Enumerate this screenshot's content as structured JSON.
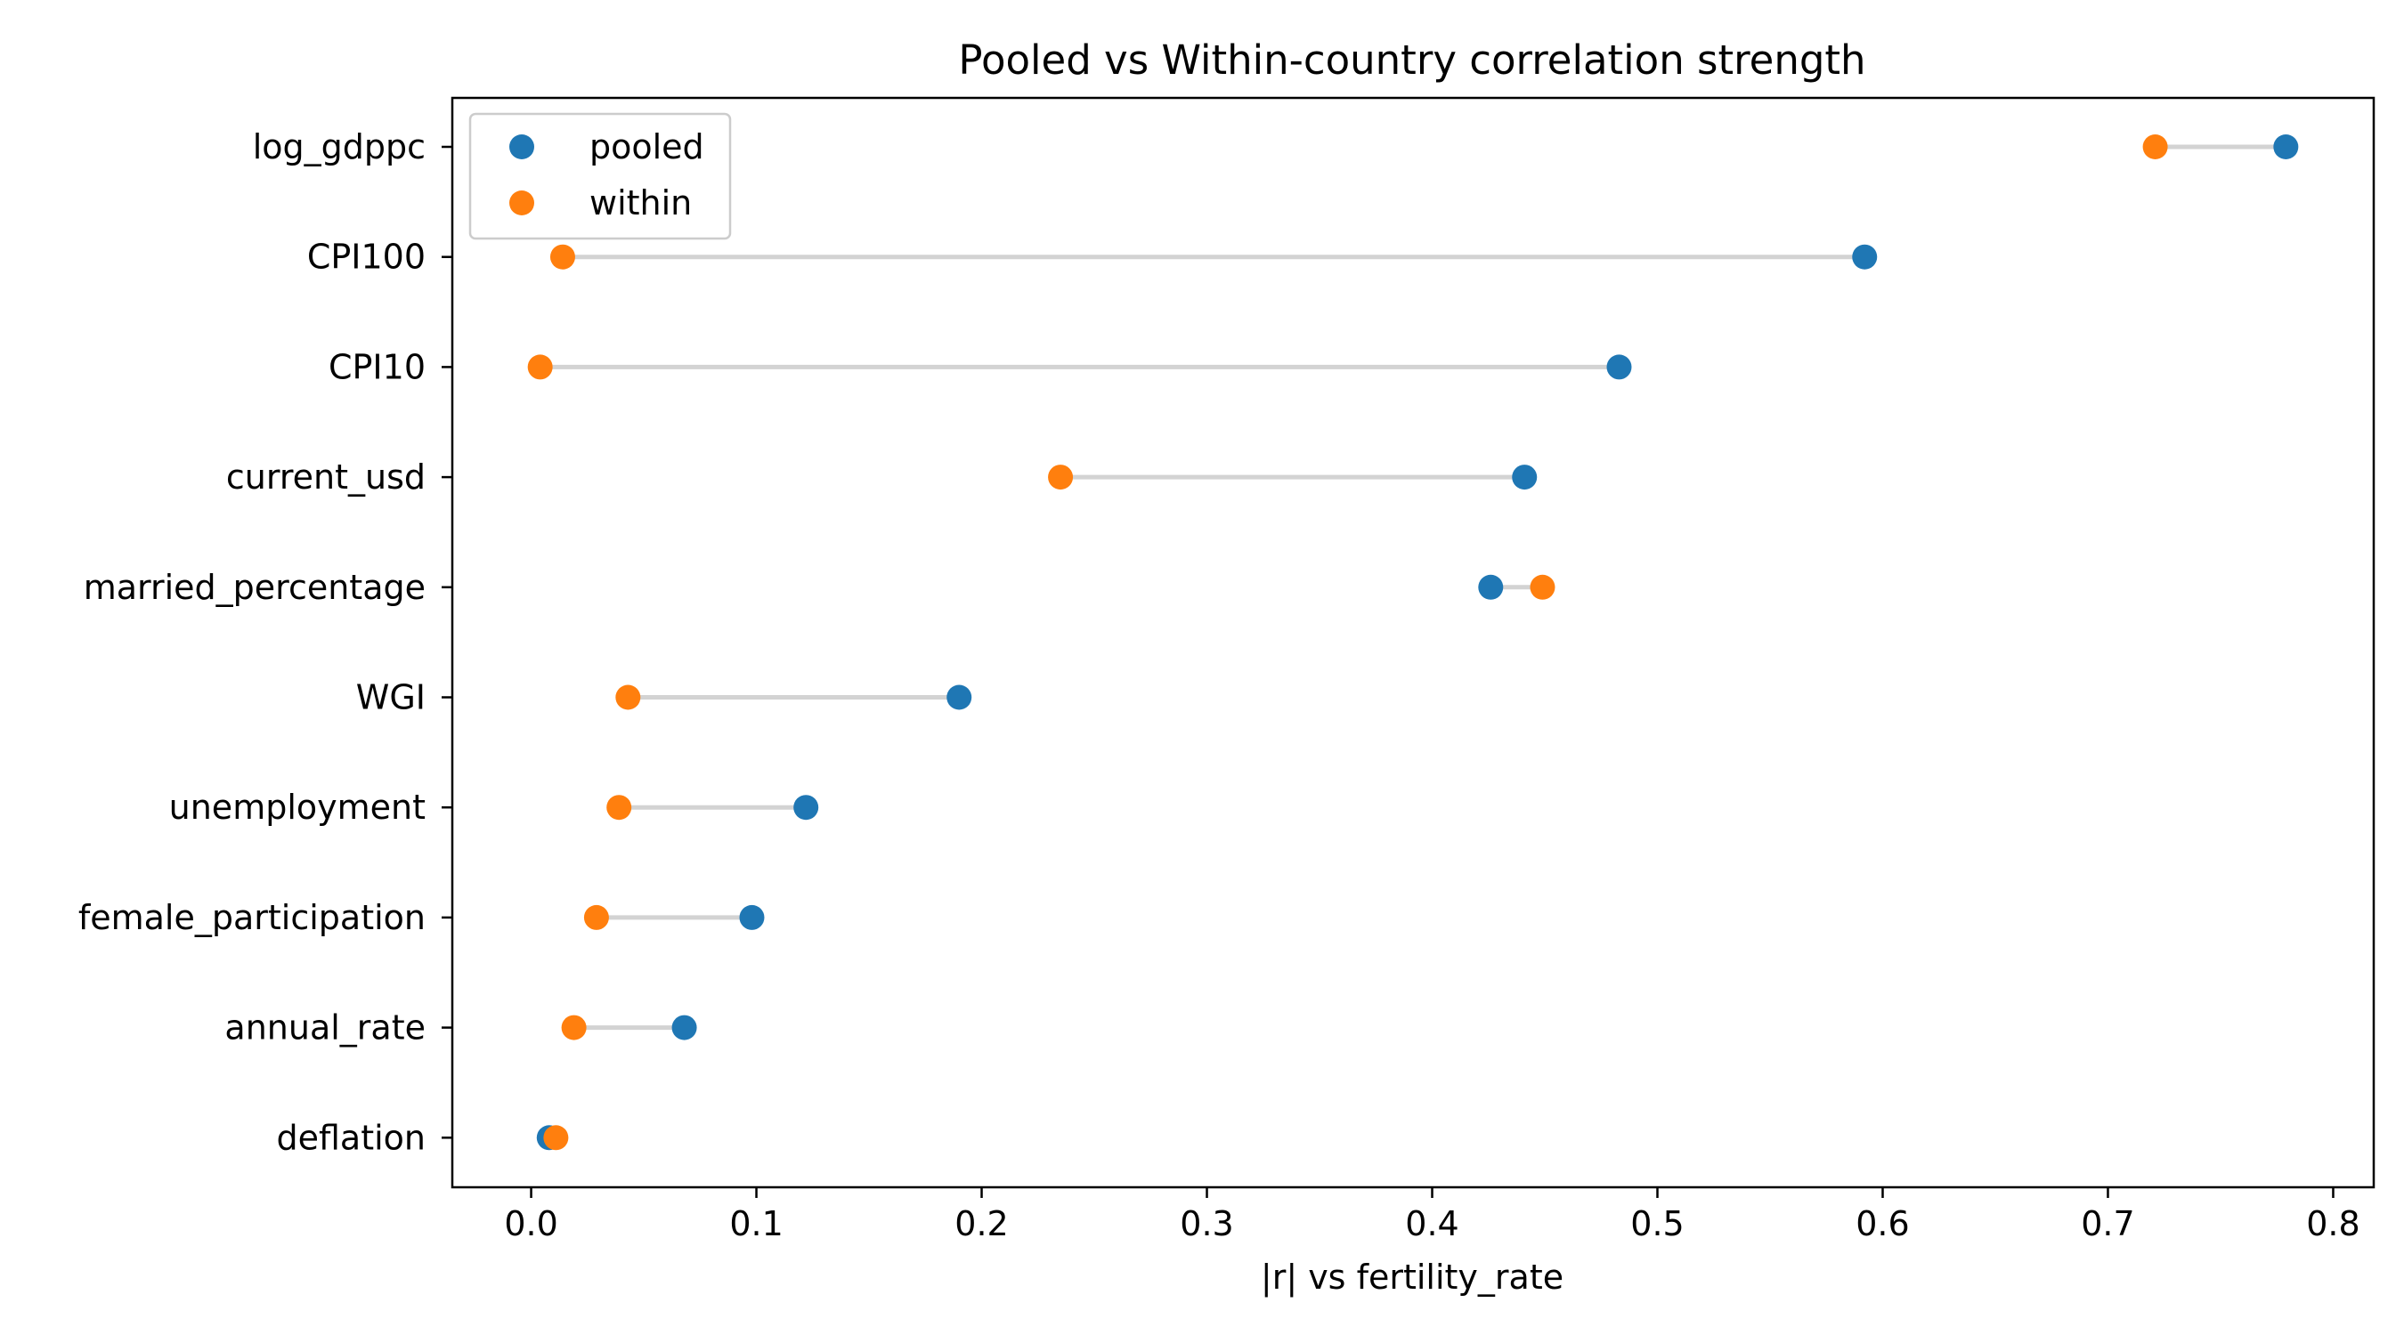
{
  "chart_data": {
    "type": "scatter",
    "subtype": "dumbbell",
    "title": "Pooled vs Within-country correlation strength",
    "xlabel": "|r| vs fertility_rate",
    "ylabel": "",
    "xlim": [
      -0.035,
      0.818
    ],
    "xticks": [
      0.0,
      0.1,
      0.2,
      0.3,
      0.4,
      0.5,
      0.6,
      0.7,
      0.8
    ],
    "xtick_labels": [
      "0.0",
      "0.1",
      "0.2",
      "0.3",
      "0.4",
      "0.5",
      "0.6",
      "0.7",
      "0.8"
    ],
    "grid": false,
    "legend_position": "upper-left",
    "categories": [
      "log_gdppc",
      "CPI100",
      "CPI10",
      "current_usd",
      "married_percentage",
      "WGI",
      "unemployment",
      "female_participation",
      "annual_rate",
      "deflation"
    ],
    "series": [
      {
        "name": "pooled",
        "color": "#1f77b4",
        "values": [
          0.779,
          0.592,
          0.483,
          0.441,
          0.426,
          0.19,
          0.122,
          0.098,
          0.068,
          0.008
        ]
      },
      {
        "name": "within",
        "color": "#ff7f0e",
        "values": [
          0.721,
          0.014,
          0.004,
          0.235,
          0.449,
          0.043,
          0.039,
          0.029,
          0.019,
          0.011
        ]
      }
    ],
    "connector_color": "#d3d3d3"
  }
}
